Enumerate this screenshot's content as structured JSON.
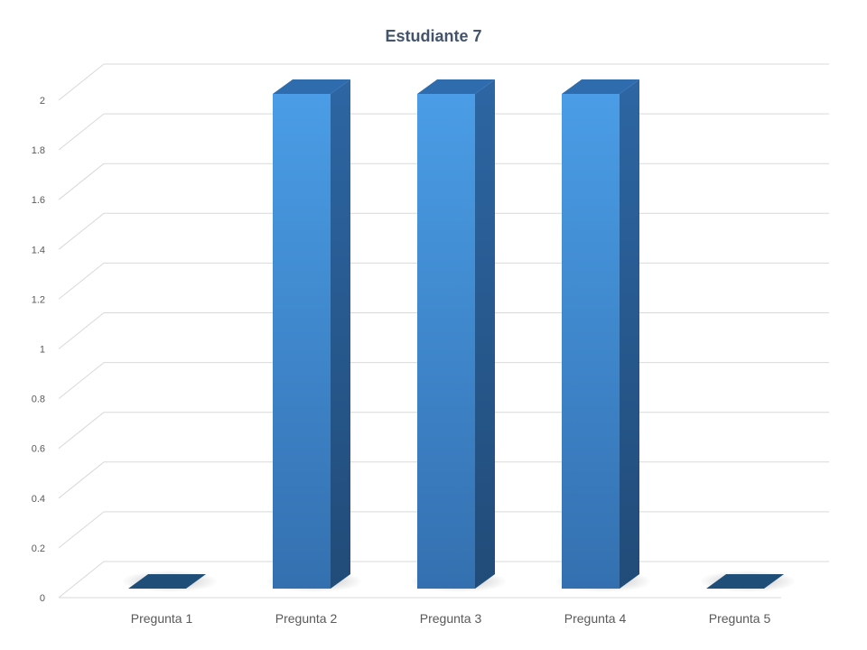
{
  "chart_data": {
    "type": "bar",
    "title": "Estudiante  7",
    "categories": [
      "Pregunta 1",
      "Pregunta 2",
      "Pregunta 3",
      "Pregunta 4",
      "Pregunta 5"
    ],
    "values": [
      0,
      2,
      2,
      2,
      0
    ],
    "ylim": [
      0,
      2
    ],
    "yticks": [
      "0",
      "0.2",
      "0.4",
      "0.6",
      "0.8",
      "1",
      "1.2",
      "1.4",
      "1.6",
      "1.8",
      "2"
    ],
    "xlabel": "",
    "ylabel": "",
    "grid": true,
    "legend": "none",
    "three_d": true,
    "colors": {
      "bar_front": "#4599e3",
      "bar_front_bottom": "#3572b4",
      "bar_side": "#2a5f96",
      "bar_top": "#2e6cad",
      "zero_bar": "#1f4e79",
      "grid": "#d9d9d9",
      "tick_text": "#595959"
    }
  }
}
